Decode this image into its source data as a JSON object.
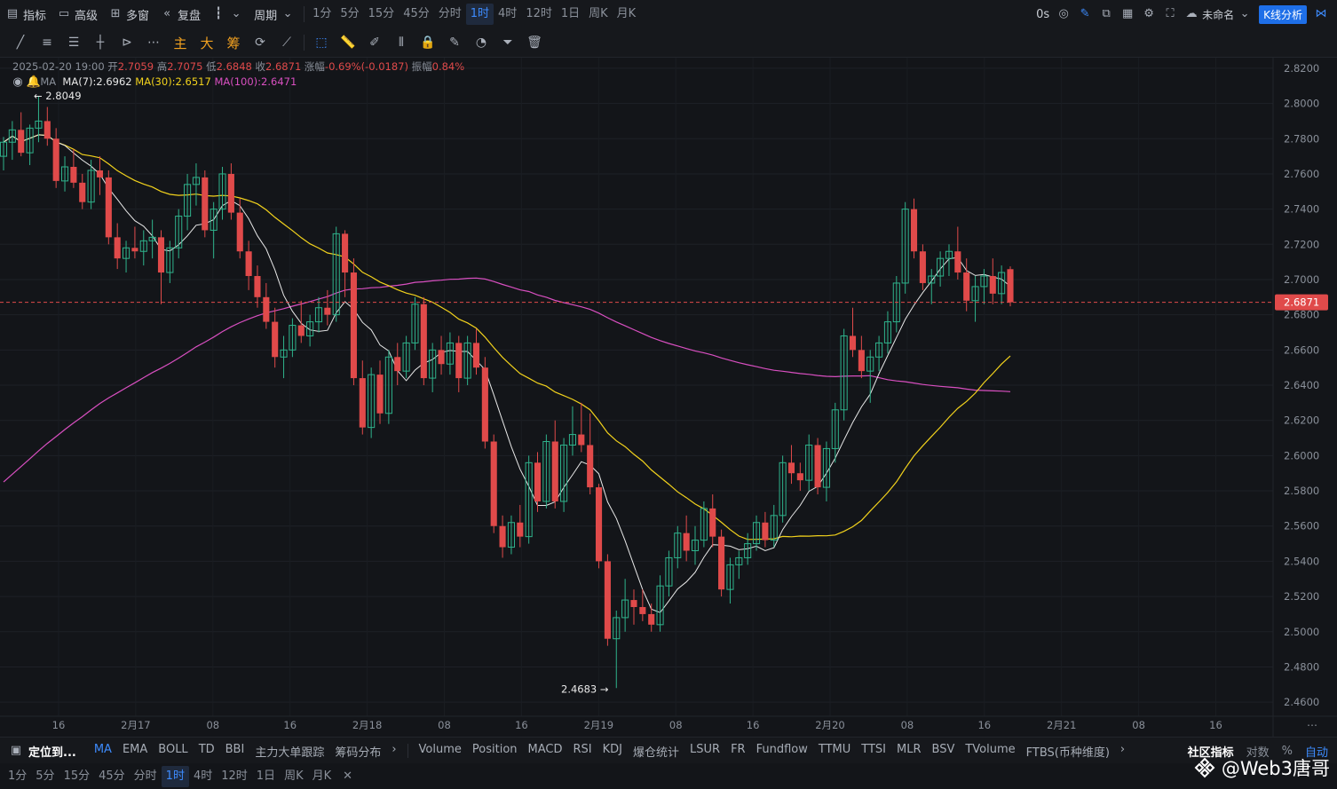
{
  "topbar": {
    "indicators_label": "指标",
    "advanced_label": "高级",
    "multi_window_label": "多窗",
    "replay_label": "复盘",
    "period_label": "周期",
    "periods": [
      "1分",
      "5分",
      "15分",
      "45分",
      "分时",
      "1时",
      "4时",
      "12时",
      "1日",
      "周K",
      "月K"
    ],
    "active_period": "1时",
    "countdown": "0s",
    "layout_name": "未命名",
    "kline_analysis": "K线分析"
  },
  "drawbar": {
    "zh_buttons": [
      "主",
      "大",
      "筹"
    ]
  },
  "info": {
    "datetime": "2025-02-20 19:00",
    "open_label": "开",
    "open": "2.7059",
    "high_label": "高",
    "high": "2.7075",
    "low_label": "低",
    "low": "2.6848",
    "close_label": "收",
    "close": "2.6871",
    "change_label": "涨幅",
    "change": "-0.69%(-0.0187)",
    "amplitude_label": "振幅",
    "amplitude": "0.84%",
    "ma_label": "MA",
    "ma7": "MA(7):2.6962",
    "ma30": "MA(30):2.6517",
    "ma100": "MA(100):2.6471"
  },
  "chart_data": {
    "type": "candlestick",
    "symbol_interval": "1时",
    "y_axis_ticks": [
      "2.8200",
      "2.8000",
      "2.7800",
      "2.7600",
      "2.7400",
      "2.7200",
      "2.7000",
      "2.6800",
      "2.6600",
      "2.6400",
      "2.6200",
      "2.6000",
      "2.5800",
      "2.5600",
      "2.5400",
      "2.5200",
      "2.5000",
      "2.4800",
      "2.4600"
    ],
    "ylim": [
      2.452,
      2.826
    ],
    "x_axis_ticks": [
      "16",
      "2月17",
      "08",
      "16",
      "2月18",
      "08",
      "16",
      "2月19",
      "08",
      "16",
      "2月20",
      "08",
      "16",
      "2月21",
      "08",
      "16"
    ],
    "current_price": "2.6871",
    "max_label": "2.8049",
    "min_label": "2.4683",
    "ma_colors": {
      "ma7": "#e8e8e8",
      "ma30": "#f2d21c",
      "ma100": "#d84fc0"
    },
    "up_color": "#2fb38c",
    "down_color": "#e04a4a",
    "candles": [
      [
        2.77,
        2.781,
        2.762,
        2.778
      ],
      [
        2.778,
        2.79,
        2.768,
        2.785
      ],
      [
        2.785,
        2.795,
        2.77,
        2.772
      ],
      [
        2.772,
        2.788,
        2.765,
        2.786
      ],
      [
        2.786,
        2.804,
        2.778,
        2.79
      ],
      [
        2.79,
        2.798,
        2.776,
        2.78
      ],
      [
        2.78,
        2.786,
        2.752,
        2.756
      ],
      [
        2.756,
        2.77,
        2.75,
        2.764
      ],
      [
        2.764,
        2.774,
        2.752,
        2.755
      ],
      [
        2.755,
        2.76,
        2.74,
        2.744
      ],
      [
        2.744,
        2.768,
        2.74,
        2.762
      ],
      [
        2.762,
        2.77,
        2.748,
        2.758
      ],
      [
        2.758,
        2.762,
        2.72,
        2.724
      ],
      [
        2.724,
        2.732,
        2.706,
        2.712
      ],
      [
        2.712,
        2.722,
        2.704,
        2.718
      ],
      [
        2.718,
        2.73,
        2.712,
        2.716
      ],
      [
        2.716,
        2.728,
        2.708,
        2.722
      ],
      [
        2.722,
        2.734,
        2.712,
        2.724
      ],
      [
        2.724,
        2.728,
        2.686,
        2.704
      ],
      [
        2.704,
        2.722,
        2.698,
        2.718
      ],
      [
        2.718,
        2.74,
        2.712,
        2.736
      ],
      [
        2.736,
        2.76,
        2.728,
        2.754
      ],
      [
        2.754,
        2.766,
        2.742,
        2.758
      ],
      [
        2.758,
        2.762,
        2.724,
        2.728
      ],
      [
        2.728,
        2.744,
        2.712,
        2.74
      ],
      [
        2.74,
        2.764,
        2.734,
        2.76
      ],
      [
        2.76,
        2.766,
        2.734,
        2.738
      ],
      [
        2.738,
        2.746,
        2.712,
        2.716
      ],
      [
        2.716,
        2.722,
        2.694,
        2.702
      ],
      [
        2.702,
        2.708,
        2.684,
        2.69
      ],
      [
        2.69,
        2.698,
        2.672,
        2.676
      ],
      [
        2.676,
        2.684,
        2.65,
        2.656
      ],
      [
        2.656,
        2.668,
        2.644,
        2.66
      ],
      [
        2.66,
        2.678,
        2.656,
        2.674
      ],
      [
        2.674,
        2.688,
        2.664,
        2.668
      ],
      [
        2.668,
        2.68,
        2.662,
        2.676
      ],
      [
        2.676,
        2.69,
        2.67,
        2.684
      ],
      [
        2.684,
        2.694,
        2.674,
        2.68
      ],
      [
        2.68,
        2.73,
        2.676,
        2.726
      ],
      [
        2.726,
        2.728,
        2.69,
        2.704
      ],
      [
        2.704,
        2.712,
        2.64,
        2.644
      ],
      [
        2.644,
        2.654,
        2.612,
        2.616
      ],
      [
        2.616,
        2.65,
        2.61,
        2.646
      ],
      [
        2.646,
        2.654,
        2.618,
        2.624
      ],
      [
        2.624,
        2.66,
        2.618,
        2.656
      ],
      [
        2.656,
        2.664,
        2.64,
        2.648
      ],
      [
        2.648,
        2.668,
        2.644,
        2.664
      ],
      [
        2.664,
        2.69,
        2.66,
        2.686
      ],
      [
        2.686,
        2.69,
        2.64,
        2.644
      ],
      [
        2.644,
        2.664,
        2.636,
        2.66
      ],
      [
        2.66,
        2.668,
        2.646,
        2.652
      ],
      [
        2.652,
        2.67,
        2.646,
        2.664
      ],
      [
        2.664,
        2.668,
        2.636,
        2.644
      ],
      [
        2.644,
        2.668,
        2.64,
        2.664
      ],
      [
        2.664,
        2.672,
        2.646,
        2.65
      ],
      [
        2.65,
        2.656,
        2.604,
        2.608
      ],
      [
        2.608,
        2.612,
        2.556,
        2.56
      ],
      [
        2.56,
        2.566,
        2.542,
        2.548
      ],
      [
        2.548,
        2.566,
        2.544,
        2.562
      ],
      [
        2.562,
        2.572,
        2.548,
        2.554
      ],
      [
        2.554,
        2.6,
        2.55,
        2.596
      ],
      [
        2.596,
        2.602,
        2.568,
        2.574
      ],
      [
        2.574,
        2.612,
        2.57,
        2.608
      ],
      [
        2.608,
        2.62,
        2.57,
        2.574
      ],
      [
        2.574,
        2.61,
        2.568,
        2.606
      ],
      [
        2.606,
        2.628,
        2.6,
        2.612
      ],
      [
        2.612,
        2.63,
        2.602,
        2.606
      ],
      [
        2.606,
        2.624,
        2.578,
        2.582
      ],
      [
        2.582,
        2.584,
        2.536,
        2.54
      ],
      [
        2.54,
        2.544,
        2.492,
        2.496
      ],
      [
        2.496,
        2.512,
        2.468,
        2.508
      ],
      [
        2.508,
        2.53,
        2.5,
        2.518
      ],
      [
        2.518,
        2.524,
        2.504,
        2.514
      ],
      [
        2.514,
        2.524,
        2.506,
        2.51
      ],
      [
        2.51,
        2.516,
        2.5,
        2.504
      ],
      [
        2.504,
        2.532,
        2.5,
        2.526
      ],
      [
        2.526,
        2.546,
        2.52,
        2.542
      ],
      [
        2.542,
        2.56,
        2.536,
        2.556
      ],
      [
        2.556,
        2.566,
        2.54,
        2.546
      ],
      [
        2.546,
        2.56,
        2.538,
        2.552
      ],
      [
        2.552,
        2.574,
        2.548,
        2.57
      ],
      [
        2.57,
        2.578,
        2.548,
        2.554
      ],
      [
        2.554,
        2.558,
        2.52,
        2.524
      ],
      [
        2.524,
        2.542,
        2.516,
        2.538
      ],
      [
        2.538,
        2.546,
        2.53,
        2.542
      ],
      [
        2.542,
        2.556,
        2.538,
        2.55
      ],
      [
        2.55,
        2.566,
        2.546,
        2.562
      ],
      [
        2.562,
        2.568,
        2.548,
        2.552
      ],
      [
        2.552,
        2.572,
        2.548,
        2.566
      ],
      [
        2.566,
        2.6,
        2.562,
        2.596
      ],
      [
        2.596,
        2.606,
        2.584,
        2.59
      ],
      [
        2.59,
        2.596,
        2.58,
        2.586
      ],
      [
        2.586,
        2.612,
        2.58,
        2.606
      ],
      [
        2.606,
        2.61,
        2.578,
        2.582
      ],
      [
        2.582,
        2.608,
        2.574,
        2.604
      ],
      [
        2.604,
        2.63,
        2.596,
        2.626
      ],
      [
        2.626,
        2.672,
        2.62,
        2.668
      ],
      [
        2.668,
        2.684,
        2.656,
        2.66
      ],
      [
        2.66,
        2.668,
        2.644,
        2.648
      ],
      [
        2.648,
        2.66,
        2.63,
        2.656
      ],
      [
        2.656,
        2.668,
        2.648,
        2.664
      ],
      [
        2.664,
        2.682,
        2.658,
        2.676
      ],
      [
        2.676,
        2.702,
        2.67,
        2.698
      ],
      [
        2.698,
        2.744,
        2.692,
        2.74
      ],
      [
        2.74,
        2.746,
        2.712,
        2.716
      ],
      [
        2.716,
        2.72,
        2.694,
        2.698
      ],
      [
        2.698,
        2.706,
        2.686,
        2.702
      ],
      [
        2.702,
        2.716,
        2.696,
        2.712
      ],
      [
        2.712,
        2.72,
        2.702,
        2.716
      ],
      [
        2.716,
        2.73,
        2.7,
        2.704
      ],
      [
        2.704,
        2.712,
        2.682,
        2.688
      ],
      [
        2.688,
        2.702,
        2.676,
        2.696
      ],
      [
        2.696,
        2.706,
        2.686,
        2.702
      ],
      [
        2.702,
        2.712,
        2.686,
        2.692
      ],
      [
        2.692,
        2.708,
        2.686,
        2.704
      ],
      [
        2.7059,
        2.7075,
        2.6848,
        2.6871
      ]
    ]
  },
  "bottom": {
    "locate_label": "定位到...",
    "indicators": [
      "MA",
      "EMA",
      "BOLL",
      "TD",
      "BBI",
      "主力大单跟踪",
      "筹码分布",
      "Volume",
      "Position",
      "MACD",
      "RSI",
      "KDJ",
      "爆仓统计",
      "LSUR",
      "FR",
      "Fundflow",
      "TTMU",
      "TTSI",
      "MLR",
      "BSV",
      "TVolume",
      "FTBS(币种维度)"
    ],
    "active_indicator": "MA",
    "community_label": "社区指标",
    "log_label": "对数",
    "percent_label": "%",
    "auto_label": "自动",
    "periods": [
      "1分",
      "5分",
      "15分",
      "45分",
      "分时",
      "1时",
      "4时",
      "12时",
      "1日",
      "周K",
      "月K"
    ],
    "active_period": "1时",
    "close_symbol": "✕",
    "watermark": "@Web3唐哥"
  }
}
